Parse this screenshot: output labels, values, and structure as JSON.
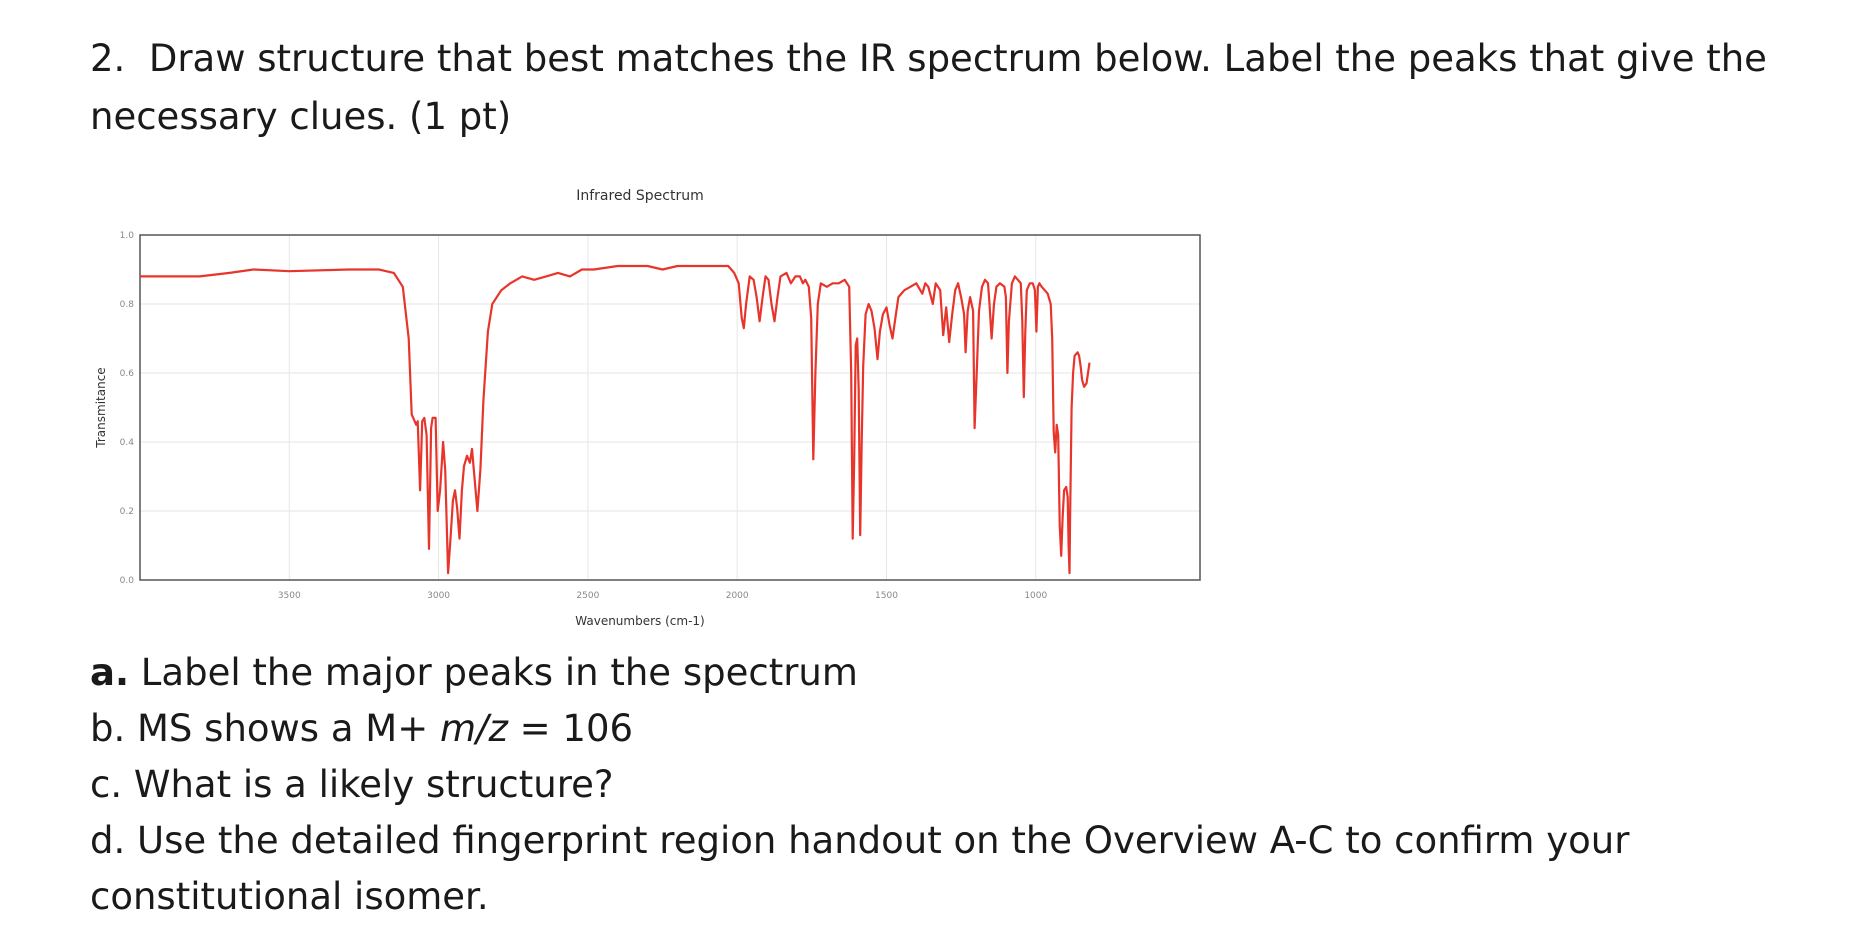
{
  "question": {
    "number": "2.",
    "text": "Draw structure that best matches the IR spectrum below. Label the peaks that give the necessary clues. (1 pt)"
  },
  "parts": {
    "a_letter": "a.",
    "a_text": " Label the major peaks in the spectrum",
    "b_text": "b. MS shows a M+ ",
    "b_italic": "m/z",
    "b_value": " = 106",
    "c_text": "c. What is a likely structure?",
    "d_text": "d. Use the detailed fingerprint region handout on the Overview A-C to confirm your constitutional isomer."
  },
  "chart_data": {
    "type": "line",
    "title": "Infrared Spectrum",
    "xlabel": "Wavenumbers (cm-1)",
    "ylabel": "Transmitance",
    "xlim": [
      4000,
      450
    ],
    "ylim": [
      0,
      1.0
    ],
    "x_ticks": [
      3500,
      3000,
      2500,
      2000,
      1500,
      1000
    ],
    "y_ticks": [
      "0.0",
      "0.2",
      "0.4",
      "0.6",
      "0.8",
      "1.0"
    ],
    "grid": true,
    "legend": "none",
    "series": [
      {
        "color": "#e8352b",
        "points": [
          [
            4000,
            0.88
          ],
          [
            3800,
            0.88
          ],
          [
            3700,
            0.89
          ],
          [
            3620,
            0.9
          ],
          [
            3500,
            0.895
          ],
          [
            3300,
            0.9
          ],
          [
            3200,
            0.9
          ],
          [
            3150,
            0.89
          ],
          [
            3120,
            0.85
          ],
          [
            3100,
            0.7
          ],
          [
            3090,
            0.48
          ],
          [
            3080,
            0.46
          ],
          [
            3075,
            0.45
          ],
          [
            3070,
            0.46
          ],
          [
            3062,
            0.26
          ],
          [
            3055,
            0.46
          ],
          [
            3048,
            0.47
          ],
          [
            3040,
            0.42
          ],
          [
            3032,
            0.09
          ],
          [
            3025,
            0.44
          ],
          [
            3020,
            0.47
          ],
          [
            3015,
            0.47
          ],
          [
            3010,
            0.47
          ],
          [
            3003,
            0.2
          ],
          [
            2995,
            0.26
          ],
          [
            2985,
            0.4
          ],
          [
            2978,
            0.32
          ],
          [
            2968,
            0.02
          ],
          [
            2960,
            0.12
          ],
          [
            2952,
            0.23
          ],
          [
            2945,
            0.26
          ],
          [
            2938,
            0.21
          ],
          [
            2930,
            0.12
          ],
          [
            2922,
            0.26
          ],
          [
            2915,
            0.33
          ],
          [
            2905,
            0.36
          ],
          [
            2895,
            0.34
          ],
          [
            2888,
            0.38
          ],
          [
            2880,
            0.3
          ],
          [
            2870,
            0.2
          ],
          [
            2860,
            0.32
          ],
          [
            2850,
            0.52
          ],
          [
            2835,
            0.72
          ],
          [
            2820,
            0.8
          ],
          [
            2790,
            0.84
          ],
          [
            2760,
            0.86
          ],
          [
            2720,
            0.88
          ],
          [
            2680,
            0.87
          ],
          [
            2640,
            0.88
          ],
          [
            2600,
            0.89
          ],
          [
            2560,
            0.88
          ],
          [
            2520,
            0.9
          ],
          [
            2480,
            0.9
          ],
          [
            2400,
            0.91
          ],
          [
            2300,
            0.91
          ],
          [
            2250,
            0.9
          ],
          [
            2200,
            0.91
          ],
          [
            2100,
            0.91
          ],
          [
            2030,
            0.91
          ],
          [
            2010,
            0.89
          ],
          [
            1995,
            0.86
          ],
          [
            1985,
            0.76
          ],
          [
            1978,
            0.73
          ],
          [
            1970,
            0.8
          ],
          [
            1958,
            0.88
          ],
          [
            1945,
            0.87
          ],
          [
            1935,
            0.82
          ],
          [
            1925,
            0.75
          ],
          [
            1915,
            0.82
          ],
          [
            1905,
            0.88
          ],
          [
            1895,
            0.87
          ],
          [
            1885,
            0.8
          ],
          [
            1875,
            0.75
          ],
          [
            1865,
            0.82
          ],
          [
            1855,
            0.88
          ],
          [
            1835,
            0.89
          ],
          [
            1820,
            0.86
          ],
          [
            1805,
            0.88
          ],
          [
            1790,
            0.88
          ],
          [
            1780,
            0.86
          ],
          [
            1772,
            0.87
          ],
          [
            1760,
            0.85
          ],
          [
            1752,
            0.76
          ],
          [
            1745,
            0.35
          ],
          [
            1738,
            0.6
          ],
          [
            1730,
            0.8
          ],
          [
            1720,
            0.86
          ],
          [
            1700,
            0.85
          ],
          [
            1680,
            0.86
          ],
          [
            1660,
            0.86
          ],
          [
            1640,
            0.87
          ],
          [
            1625,
            0.85
          ],
          [
            1618,
            0.6
          ],
          [
            1613,
            0.12
          ],
          [
            1608,
            0.35
          ],
          [
            1603,
            0.68
          ],
          [
            1598,
            0.7
          ],
          [
            1593,
            0.55
          ],
          [
            1588,
            0.13
          ],
          [
            1583,
            0.4
          ],
          [
            1578,
            0.62
          ],
          [
            1570,
            0.77
          ],
          [
            1560,
            0.8
          ],
          [
            1550,
            0.78
          ],
          [
            1540,
            0.73
          ],
          [
            1530,
            0.64
          ],
          [
            1522,
            0.72
          ],
          [
            1512,
            0.77
          ],
          [
            1500,
            0.79
          ],
          [
            1490,
            0.74
          ],
          [
            1480,
            0.7
          ],
          [
            1470,
            0.76
          ],
          [
            1460,
            0.82
          ],
          [
            1440,
            0.84
          ],
          [
            1420,
            0.85
          ],
          [
            1400,
            0.86
          ],
          [
            1380,
            0.83
          ],
          [
            1370,
            0.86
          ],
          [
            1360,
            0.85
          ],
          [
            1345,
            0.8
          ],
          [
            1335,
            0.86
          ],
          [
            1320,
            0.84
          ],
          [
            1310,
            0.71
          ],
          [
            1300,
            0.79
          ],
          [
            1290,
            0.69
          ],
          [
            1280,
            0.77
          ],
          [
            1270,
            0.84
          ],
          [
            1260,
            0.86
          ],
          [
            1250,
            0.82
          ],
          [
            1240,
            0.77
          ],
          [
            1235,
            0.66
          ],
          [
            1228,
            0.78
          ],
          [
            1220,
            0.82
          ],
          [
            1210,
            0.78
          ],
          [
            1205,
            0.44
          ],
          [
            1198,
            0.6
          ],
          [
            1190,
            0.78
          ],
          [
            1180,
            0.85
          ],
          [
            1170,
            0.87
          ],
          [
            1160,
            0.86
          ],
          [
            1155,
            0.8
          ],
          [
            1148,
            0.7
          ],
          [
            1140,
            0.8
          ],
          [
            1132,
            0.85
          ],
          [
            1120,
            0.86
          ],
          [
            1105,
            0.85
          ],
          [
            1100,
            0.82
          ],
          [
            1095,
            0.6
          ],
          [
            1090,
            0.75
          ],
          [
            1080,
            0.86
          ],
          [
            1070,
            0.88
          ],
          [
            1060,
            0.87
          ],
          [
            1050,
            0.86
          ],
          [
            1045,
            0.75
          ],
          [
            1040,
            0.53
          ],
          [
            1035,
            0.72
          ],
          [
            1030,
            0.84
          ],
          [
            1020,
            0.86
          ],
          [
            1010,
            0.86
          ],
          [
            1003,
            0.84
          ],
          [
            998,
            0.72
          ],
          [
            993,
            0.85
          ],
          [
            988,
            0.86
          ],
          [
            980,
            0.85
          ],
          [
            970,
            0.84
          ],
          [
            960,
            0.83
          ],
          [
            950,
            0.8
          ],
          [
            945,
            0.7
          ],
          [
            940,
            0.43
          ],
          [
            935,
            0.37
          ],
          [
            930,
            0.45
          ],
          [
            925,
            0.42
          ],
          [
            920,
            0.16
          ],
          [
            915,
            0.07
          ],
          [
            910,
            0.18
          ],
          [
            905,
            0.26
          ],
          [
            898,
            0.27
          ],
          [
            893,
            0.24
          ],
          [
            890,
            0.1
          ],
          [
            887,
            0.02
          ],
          [
            885,
            0.18
          ],
          [
            880,
            0.5
          ],
          [
            875,
            0.6
          ],
          [
            870,
            0.65
          ],
          [
            860,
            0.66
          ],
          [
            855,
            0.65
          ],
          [
            850,
            0.62
          ],
          [
            845,
            0.58
          ],
          [
            838,
            0.56
          ],
          [
            830,
            0.57
          ],
          [
            825,
            0.6
          ],
          [
            820,
            0.63
          ]
        ]
      }
    ]
  }
}
